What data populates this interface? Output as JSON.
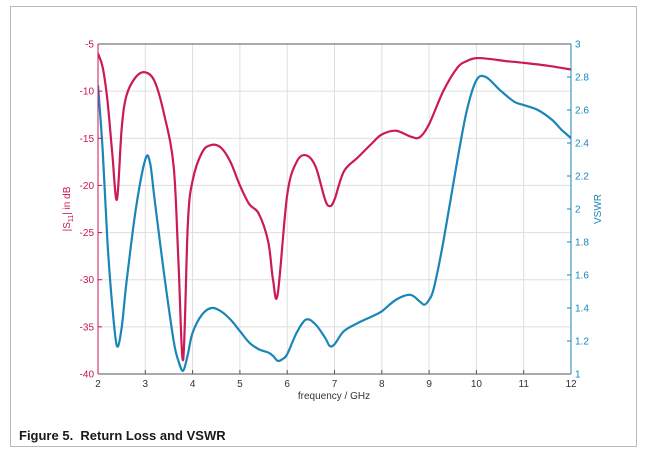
{
  "caption": {
    "figure_label": "Figure 5.",
    "title": "Return Loss and VSWR"
  },
  "colors": {
    "left_axis": "#c8155a",
    "right_axis": "#1a86b8",
    "s11_line": "#cc1a57",
    "vswr_line": "#1a86b8",
    "grid": "#dedede",
    "axis": "#555555",
    "x_text": "#333333"
  },
  "chart_data": {
    "type": "line",
    "title": "Return Loss and VSWR",
    "xlabel": "frequency / GHz",
    "ylabel_left": "|S11| in dB",
    "ylabel_left_parts": [
      "|S",
      "11",
      "| in dB"
    ],
    "ylabel_right": "VSWR",
    "xlim": [
      2,
      12
    ],
    "ylim_left": [
      -40,
      -5
    ],
    "ylim_right": [
      1,
      3
    ],
    "x_ticks": [
      2,
      3,
      4,
      5,
      6,
      7,
      8,
      9,
      10,
      11,
      12
    ],
    "y_left_ticks": [
      -40,
      -35,
      -30,
      -25,
      -20,
      -15,
      -10,
      -5
    ],
    "y_right_ticks": [
      1,
      1.2,
      1.4,
      1.6,
      1.8,
      2,
      2.2,
      2.4,
      2.6,
      2.8,
      3
    ],
    "y_right_tick_labels": [
      "1",
      "1.2",
      "1.4",
      "1.6",
      "1.8",
      "2",
      "2.2",
      "2.4",
      "2.6",
      "2.8",
      "3"
    ],
    "grid": true,
    "series": [
      {
        "name": "|S11|",
        "axis": "left",
        "x": [
          2.0,
          2.1,
          2.2,
          2.3,
          2.4,
          2.5,
          2.6,
          2.8,
          3.0,
          3.2,
          3.4,
          3.6,
          3.7,
          3.8,
          3.9,
          4.0,
          4.2,
          4.4,
          4.6,
          4.8,
          5.0,
          5.2,
          5.4,
          5.6,
          5.7,
          5.8,
          6.0,
          6.2,
          6.4,
          6.6,
          6.8,
          6.9,
          7.0,
          7.2,
          7.5,
          7.8,
          8.0,
          8.3,
          8.6,
          8.8,
          9.0,
          9.3,
          9.6,
          9.8,
          10.0,
          10.3,
          10.6,
          11.0,
          11.5,
          12.0
        ],
        "values": [
          -6.0,
          -7.5,
          -11.0,
          -16.5,
          -21.5,
          -14.0,
          -10.5,
          -8.5,
          -8.0,
          -9.0,
          -12.5,
          -18.0,
          -28.0,
          -38.5,
          -24.0,
          -19.5,
          -16.5,
          -15.7,
          -16.0,
          -17.5,
          -20.0,
          -22.0,
          -23.0,
          -26.0,
          -30.0,
          -31.5,
          -21.0,
          -17.5,
          -16.8,
          -18.0,
          -21.5,
          -22.2,
          -21.5,
          -18.5,
          -17.0,
          -15.5,
          -14.6,
          -14.2,
          -14.8,
          -14.9,
          -13.5,
          -10.0,
          -7.5,
          -6.8,
          -6.5,
          -6.6,
          -6.8,
          -7.0,
          -7.3,
          -7.7
        ]
      },
      {
        "name": "VSWR",
        "axis": "right",
        "x": [
          2.0,
          2.1,
          2.2,
          2.3,
          2.4,
          2.5,
          2.6,
          2.8,
          3.0,
          3.1,
          3.2,
          3.4,
          3.6,
          3.7,
          3.8,
          3.9,
          4.0,
          4.2,
          4.4,
          4.6,
          4.8,
          5.0,
          5.2,
          5.4,
          5.6,
          5.7,
          5.8,
          5.9,
          6.0,
          6.2,
          6.4,
          6.6,
          6.8,
          6.9,
          7.0,
          7.2,
          7.5,
          7.8,
          8.0,
          8.3,
          8.6,
          8.8,
          8.9,
          9.0,
          9.1,
          9.3,
          9.6,
          9.8,
          10.0,
          10.2,
          10.5,
          10.8,
          11.0,
          11.3,
          11.6,
          11.8,
          12.0
        ],
        "values": [
          2.75,
          2.35,
          1.8,
          1.42,
          1.17,
          1.28,
          1.55,
          2.0,
          2.3,
          2.28,
          2.05,
          1.6,
          1.2,
          1.08,
          1.02,
          1.12,
          1.25,
          1.36,
          1.4,
          1.38,
          1.33,
          1.26,
          1.19,
          1.15,
          1.13,
          1.11,
          1.08,
          1.09,
          1.12,
          1.25,
          1.33,
          1.3,
          1.22,
          1.17,
          1.18,
          1.26,
          1.31,
          1.35,
          1.38,
          1.45,
          1.48,
          1.44,
          1.42,
          1.45,
          1.52,
          1.8,
          2.3,
          2.6,
          2.78,
          2.8,
          2.72,
          2.65,
          2.63,
          2.6,
          2.54,
          2.48,
          2.43
        ]
      }
    ]
  }
}
